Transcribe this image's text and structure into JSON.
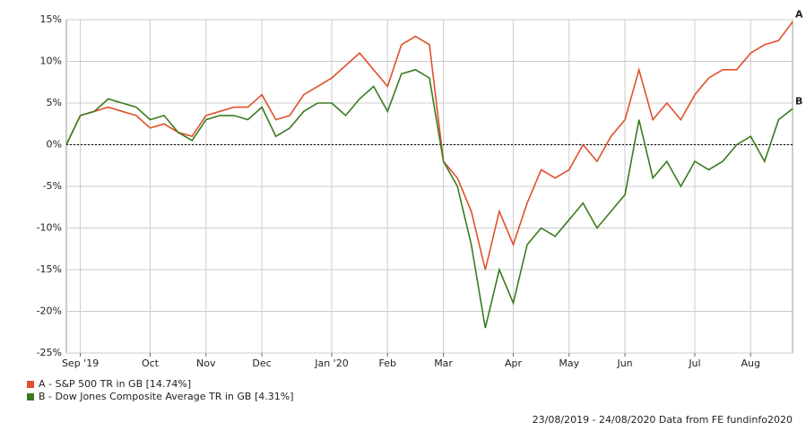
{
  "chart_data": {
    "type": "line",
    "categories": [
      null,
      "Sep '19",
      null,
      null,
      null,
      null,
      "Oct",
      null,
      null,
      null,
      "Nov",
      null,
      null,
      null,
      "Dec",
      null,
      null,
      null,
      null,
      "Jan '20",
      null,
      null,
      null,
      "Feb",
      null,
      null,
      null,
      "Mar",
      null,
      null,
      null,
      null,
      "Apr",
      null,
      null,
      null,
      "May",
      null,
      null,
      null,
      "Jun",
      null,
      null,
      null,
      null,
      "Jul",
      null,
      null,
      null,
      "Aug",
      null,
      null,
      null
    ],
    "series": [
      {
        "name": "A - S&P 500 TR in GB [14.74%]",
        "end_label": "A",
        "color": "#e0502a",
        "values": [
          0,
          3.5,
          4,
          4.5,
          4,
          3.5,
          2,
          2.5,
          1.5,
          1,
          3.5,
          4,
          4.5,
          4.5,
          6,
          3,
          3.5,
          6,
          7,
          8,
          9.5,
          11,
          9,
          7,
          12,
          13,
          12,
          -2,
          -4,
          -8,
          -15,
          -8,
          -12,
          -7,
          -3,
          -4,
          -3,
          0,
          -2,
          1,
          3,
          9,
          3,
          5,
          3,
          6,
          8,
          9,
          9,
          11,
          12,
          12.5,
          14.74
        ]
      },
      {
        "name": "B - Dow Jones Composite Average TR in GB [4.31%]",
        "end_label": "B",
        "color": "#3a7a1f",
        "values": [
          0,
          3.5,
          4,
          5.5,
          5,
          4.5,
          3,
          3.5,
          1.5,
          0.5,
          3,
          3.5,
          3.5,
          3,
          4.5,
          1,
          2,
          4,
          5,
          5,
          3.5,
          5.5,
          7,
          4,
          8.5,
          9,
          8,
          -2,
          -5,
          -12,
          -22,
          -15,
          -19,
          -12,
          -10,
          -11,
          -9,
          -7,
          -10,
          -8,
          -6,
          3,
          -4,
          -2,
          -5,
          -2,
          -3,
          -2,
          0,
          1,
          -2,
          3,
          4.31
        ]
      }
    ],
    "ylim": [
      -25,
      15
    ],
    "yticks": [
      {
        "value": -25,
        "label": "-25%"
      },
      {
        "value": -20,
        "label": "-20%"
      },
      {
        "value": -15,
        "label": "-15%"
      },
      {
        "value": -10,
        "label": "-10%"
      },
      {
        "value": -5,
        "label": "-5%"
      },
      {
        "value": 0,
        "label": "0%"
      },
      {
        "value": 5,
        "label": "5%"
      },
      {
        "value": 10,
        "label": "10%"
      },
      {
        "value": 15,
        "label": "15%"
      }
    ],
    "grid": true,
    "footer": "23/08/2019 - 24/08/2020 Data from FE fundinfo2020"
  }
}
